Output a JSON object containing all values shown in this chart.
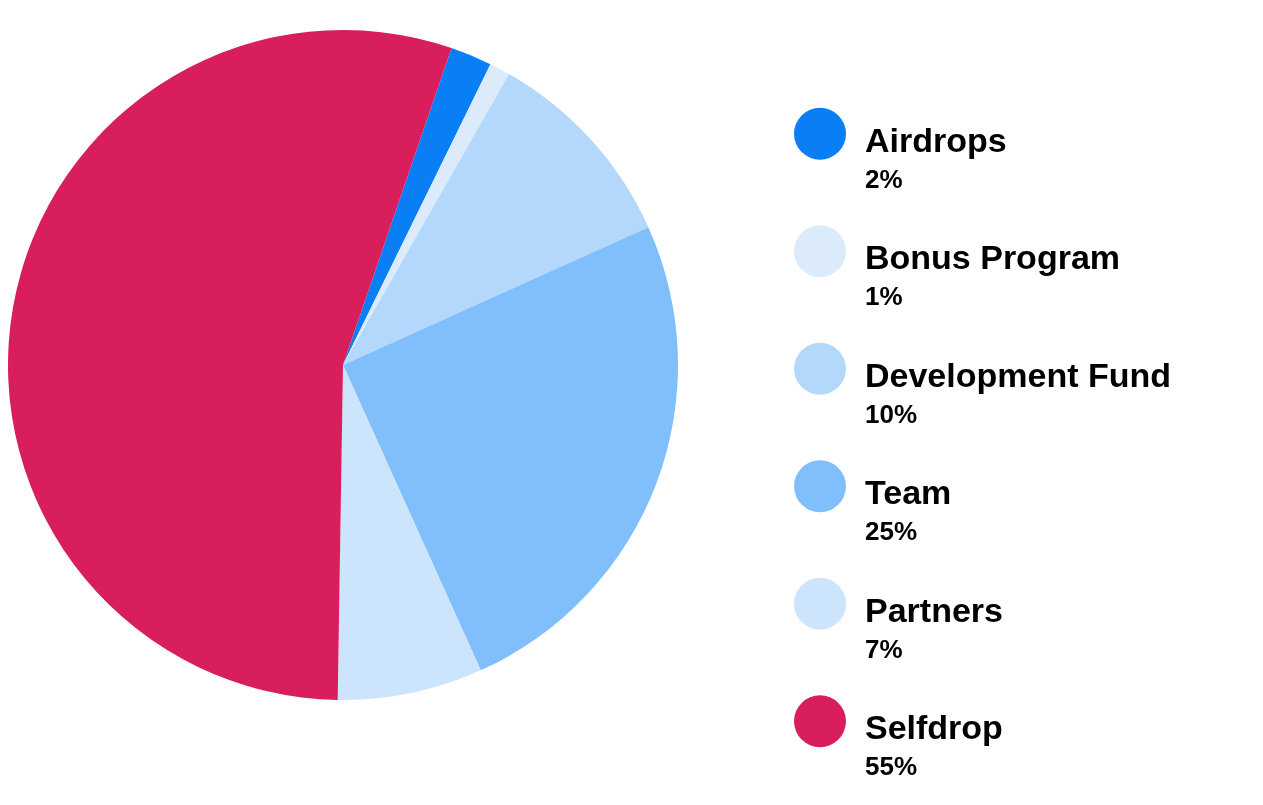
{
  "chart_data": {
    "type": "pie",
    "categories": [
      "Airdrops",
      "Bonus Program",
      "Development Fund",
      "Team",
      "Partners",
      "Selfdrop"
    ],
    "values": [
      2,
      1,
      10,
      25,
      7,
      55
    ],
    "value_labels": [
      "2%",
      "1%",
      "10%",
      "25%",
      "7%",
      "55%"
    ],
    "colors": [
      "#0a7ef4",
      "#dcebfb",
      "#b3d8fb",
      "#80bffc",
      "#cce4fc",
      "#d81e5b"
    ],
    "legend": "right"
  }
}
